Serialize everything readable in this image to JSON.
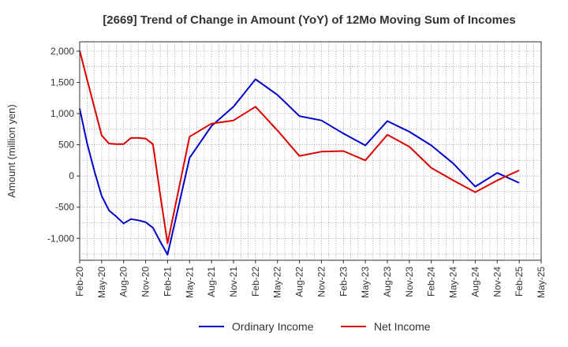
{
  "chart_data": {
    "type": "line",
    "title": "[2669]  Trend of Change in Amount (YoY) of 12Mo Moving Sum of Incomes",
    "xlabel": "",
    "ylabel": "Amount (million yen)",
    "ylim": [
      -1350,
      2150
    ],
    "yticks": [
      2000,
      1500,
      1000,
      500,
      0,
      -500,
      -1000
    ],
    "ytick_labels": [
      "2,000",
      "1,500",
      "1,000",
      "500",
      "0",
      "-500",
      "-1,000"
    ],
    "x_tick_labels": [
      "Feb-20",
      "May-20",
      "Aug-20",
      "Nov-20",
      "Feb-21",
      "May-21",
      "Aug-21",
      "Nov-21",
      "Feb-22",
      "May-22",
      "Aug-22",
      "Nov-22",
      "Feb-23",
      "May-23",
      "Aug-23",
      "Nov-23",
      "Feb-24",
      "May-24",
      "Aug-24",
      "Nov-24",
      "Feb-25",
      "May-25"
    ],
    "grid": true,
    "legend_position": "bottom-center",
    "series": [
      {
        "name": "Ordinary Income",
        "color": "#0000cc",
        "points": [
          [
            "Feb-20",
            1080
          ],
          [
            "Mar-20",
            530
          ],
          [
            "Apr-20",
            80
          ],
          [
            "May-20",
            -320
          ],
          [
            "Jun-20",
            -550
          ],
          [
            "Jul-20",
            -650
          ],
          [
            "Aug-20",
            -760
          ],
          [
            "Sep-20",
            -690
          ],
          [
            "Oct-20",
            -710
          ],
          [
            "Nov-20",
            -740
          ],
          [
            "Dec-20",
            -830
          ],
          [
            "Jan-21",
            -1050
          ],
          [
            "Feb-21",
            -1260
          ],
          [
            "May-21",
            290
          ],
          [
            "Aug-21",
            800
          ],
          [
            "Nov-21",
            1110
          ],
          [
            "Feb-22",
            1550
          ],
          [
            "May-22",
            1300
          ],
          [
            "Aug-22",
            960
          ],
          [
            "Nov-22",
            890
          ],
          [
            "Feb-23",
            680
          ],
          [
            "May-23",
            490
          ],
          [
            "Aug-23",
            880
          ],
          [
            "Nov-23",
            710
          ],
          [
            "Feb-24",
            490
          ],
          [
            "May-24",
            200
          ],
          [
            "Aug-24",
            -170
          ],
          [
            "Nov-24",
            50
          ],
          [
            "Feb-25",
            -110
          ]
        ]
      },
      {
        "name": "Net Income",
        "color": "#dd0000",
        "points": [
          [
            "Feb-20",
            2010
          ],
          [
            "Mar-20",
            1550
          ],
          [
            "Apr-20",
            1100
          ],
          [
            "May-20",
            650
          ],
          [
            "Jun-20",
            520
          ],
          [
            "Jul-20",
            510
          ],
          [
            "Aug-20",
            510
          ],
          [
            "Sep-20",
            610
          ],
          [
            "Oct-20",
            610
          ],
          [
            "Nov-20",
            600
          ],
          [
            "Dec-20",
            510
          ],
          [
            "Jan-21",
            -300
          ],
          [
            "Feb-21",
            -1080
          ],
          [
            "May-21",
            630
          ],
          [
            "Aug-21",
            840
          ],
          [
            "Nov-21",
            890
          ],
          [
            "Feb-22",
            1110
          ],
          [
            "May-22",
            730
          ],
          [
            "Aug-22",
            320
          ],
          [
            "Nov-22",
            390
          ],
          [
            "Feb-23",
            400
          ],
          [
            "May-23",
            250
          ],
          [
            "Aug-23",
            660
          ],
          [
            "Nov-23",
            470
          ],
          [
            "Feb-24",
            130
          ],
          [
            "May-24",
            -70
          ],
          [
            "Aug-24",
            -260
          ],
          [
            "Nov-24",
            -70
          ],
          [
            "Feb-25",
            90
          ]
        ]
      }
    ]
  }
}
